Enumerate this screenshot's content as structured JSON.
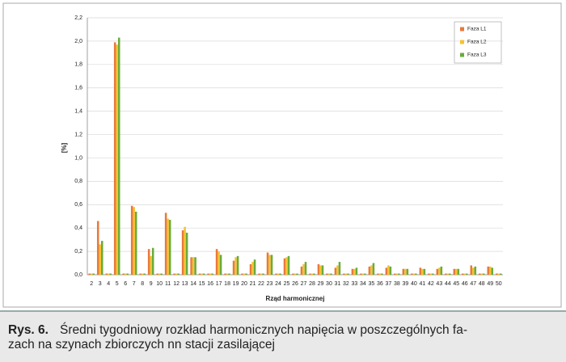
{
  "chart_data": {
    "type": "bar",
    "x_label": "Rząd harmonicznej",
    "y_label": "[%]",
    "categories": [
      "2",
      "3",
      "4",
      "5",
      "6",
      "7",
      "8",
      "9",
      "10",
      "11",
      "12",
      "13",
      "14",
      "15",
      "16",
      "17",
      "18",
      "19",
      "20",
      "21",
      "22",
      "23",
      "24",
      "25",
      "26",
      "27",
      "28",
      "29",
      "30",
      "31",
      "32",
      "33",
      "34",
      "35",
      "36",
      "37",
      "38",
      "39",
      "40",
      "41",
      "42",
      "43",
      "44",
      "45",
      "46",
      "47",
      "48",
      "49",
      "50"
    ],
    "series": [
      {
        "name": "Faza L1",
        "color": "#e8793a",
        "values": [
          0.01,
          0.46,
          0.01,
          1.99,
          0.01,
          0.59,
          0.01,
          0.22,
          0.01,
          0.53,
          0.01,
          0.38,
          0.15,
          0.01,
          0.01,
          0.22,
          0.01,
          0.12,
          0.01,
          0.09,
          0.01,
          0.19,
          0.01,
          0.14,
          0.01,
          0.07,
          0.01,
          0.09,
          0.01,
          0.06,
          0.01,
          0.05,
          0.01,
          0.07,
          0.01,
          0.06,
          0.01,
          0.05,
          0.01,
          0.06,
          0.01,
          0.05,
          0.01,
          0.05,
          0.01,
          0.08,
          0.01,
          0.07,
          0.01
        ]
      },
      {
        "name": "Faza L2",
        "color": "#f5c230",
        "values": [
          0.01,
          0.26,
          0.01,
          1.97,
          0.01,
          0.58,
          0.01,
          0.16,
          0.01,
          0.48,
          0.01,
          0.41,
          0.15,
          0.01,
          0.01,
          0.2,
          0.01,
          0.15,
          0.01,
          0.11,
          0.01,
          0.17,
          0.01,
          0.15,
          0.01,
          0.09,
          0.01,
          0.08,
          0.01,
          0.08,
          0.01,
          0.05,
          0.01,
          0.08,
          0.01,
          0.08,
          0.01,
          0.05,
          0.01,
          0.05,
          0.01,
          0.06,
          0.01,
          0.05,
          0.01,
          0.06,
          0.01,
          0.07,
          0.01
        ]
      },
      {
        "name": "Faza L3",
        "color": "#6aab3c",
        "values": [
          0.01,
          0.29,
          0.01,
          2.03,
          0.01,
          0.54,
          0.01,
          0.23,
          0.01,
          0.47,
          0.01,
          0.36,
          0.15,
          0.01,
          0.01,
          0.17,
          0.01,
          0.16,
          0.01,
          0.13,
          0.01,
          0.17,
          0.01,
          0.16,
          0.01,
          0.11,
          0.01,
          0.08,
          0.01,
          0.11,
          0.01,
          0.06,
          0.01,
          0.1,
          0.01,
          0.07,
          0.01,
          0.05,
          0.01,
          0.05,
          0.01,
          0.07,
          0.01,
          0.05,
          0.01,
          0.07,
          0.01,
          0.06,
          0.01
        ]
      }
    ],
    "ylim": [
      0,
      2.2
    ],
    "yticks": [
      {
        "value": 0,
        "label": "0,0"
      },
      {
        "value": 0.2,
        "label": "0,2"
      },
      {
        "value": 0.4,
        "label": "0,4"
      },
      {
        "value": 0.6,
        "label": "0,6"
      },
      {
        "value": 0.8,
        "label": "0,8"
      },
      {
        "value": 1,
        "label": "1,0"
      },
      {
        "value": 1.2,
        "label": "1,2"
      },
      {
        "value": 1.4,
        "label": "1,4"
      },
      {
        "value": 1.6,
        "label": "1,6"
      },
      {
        "value": 1.8,
        "label": "1,8"
      },
      {
        "value": 2,
        "label": "2,0"
      },
      {
        "value": 2.2,
        "label": "2,2"
      }
    ],
    "grid": true,
    "legend": "top-right"
  },
  "caption": {
    "label": "Rys. 6.",
    "lines": [
      "Średni tygodniowy rozkład harmonicznych napięcia w poszczególnych fa-",
      "zach na szynach zbiorczych nn stacji zasilającej"
    ]
  }
}
